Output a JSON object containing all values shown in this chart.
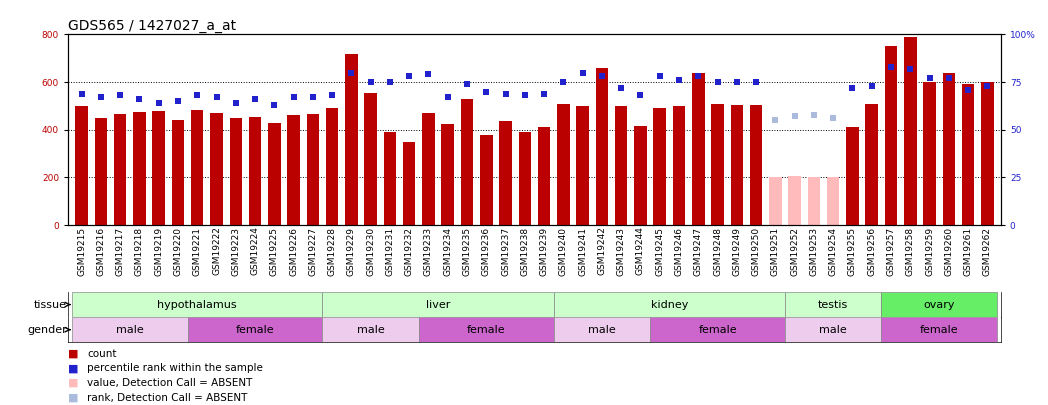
{
  "title": "GDS565 / 1427027_a_at",
  "samples": [
    "GSM19215",
    "GSM19216",
    "GSM19217",
    "GSM19218",
    "GSM19219",
    "GSM19220",
    "GSM19221",
    "GSM19222",
    "GSM19223",
    "GSM19224",
    "GSM19225",
    "GSM19226",
    "GSM19227",
    "GSM19228",
    "GSM19229",
    "GSM19230",
    "GSM19231",
    "GSM19232",
    "GSM19233",
    "GSM19234",
    "GSM19235",
    "GSM19236",
    "GSM19237",
    "GSM19238",
    "GSM19239",
    "GSM19240",
    "GSM19241",
    "GSM19242",
    "GSM19243",
    "GSM19244",
    "GSM19245",
    "GSM19246",
    "GSM19247",
    "GSM19248",
    "GSM19249",
    "GSM19250",
    "GSM19251",
    "GSM19252",
    "GSM19253",
    "GSM19254",
    "GSM19255",
    "GSM19256",
    "GSM19257",
    "GSM19258",
    "GSM19259",
    "GSM19260",
    "GSM19261",
    "GSM19262"
  ],
  "counts": [
    500,
    450,
    465,
    475,
    480,
    440,
    485,
    470,
    450,
    455,
    430,
    460,
    465,
    490,
    720,
    555,
    390,
    350,
    470,
    425,
    530,
    380,
    435,
    390,
    410,
    510,
    500,
    660,
    500,
    415,
    490,
    500,
    640,
    510,
    505,
    505,
    200,
    205,
    200,
    200,
    410,
    510,
    750,
    790,
    600,
    640,
    590,
    600
  ],
  "percentile_ranks": [
    69,
    67,
    68,
    66,
    64,
    65,
    68,
    67,
    64,
    66,
    63,
    67,
    67,
    68,
    80,
    75,
    75,
    78,
    79,
    67,
    74,
    70,
    69,
    68,
    69,
    75,
    80,
    78,
    72,
    68,
    78,
    76,
    78,
    75,
    75,
    75,
    55,
    57,
    58,
    56,
    72,
    73,
    83,
    82,
    77,
    77,
    71,
    73
  ],
  "absent_call": [
    false,
    false,
    false,
    false,
    false,
    false,
    false,
    false,
    false,
    false,
    false,
    false,
    false,
    false,
    false,
    false,
    false,
    false,
    false,
    false,
    false,
    false,
    false,
    false,
    false,
    false,
    false,
    false,
    false,
    false,
    false,
    false,
    false,
    false,
    false,
    false,
    true,
    true,
    true,
    true,
    false,
    false,
    false,
    false,
    false,
    false,
    false,
    false
  ],
  "bar_color_normal": "#bb0000",
  "bar_color_absent": "#ffbbbb",
  "dot_color_normal": "#2222cc",
  "dot_color_absent": "#aabbdd",
  "ylim_left": [
    0,
    800
  ],
  "ylim_right": [
    0,
    100
  ],
  "yticks_left": [
    0,
    200,
    400,
    600,
    800
  ],
  "yticks_right": [
    0,
    25,
    50,
    75,
    100
  ],
  "ytick_right_labels": [
    "0",
    "25",
    "50",
    "75",
    "100%"
  ],
  "tissues": [
    {
      "label": "hypothalamus",
      "start": 0,
      "end": 13,
      "color": "#ccffcc"
    },
    {
      "label": "liver",
      "start": 13,
      "end": 25,
      "color": "#ccffcc"
    },
    {
      "label": "kidney",
      "start": 25,
      "end": 37,
      "color": "#ccffcc"
    },
    {
      "label": "testis",
      "start": 37,
      "end": 42,
      "color": "#ccffcc"
    },
    {
      "label": "ovary",
      "start": 42,
      "end": 48,
      "color": "#66ee66"
    }
  ],
  "genders": [
    {
      "label": "male",
      "start": 0,
      "end": 6,
      "color": "#eeccee"
    },
    {
      "label": "female",
      "start": 6,
      "end": 13,
      "color": "#cc66cc"
    },
    {
      "label": "male",
      "start": 13,
      "end": 18,
      "color": "#eeccee"
    },
    {
      "label": "female",
      "start": 18,
      "end": 25,
      "color": "#cc66cc"
    },
    {
      "label": "male",
      "start": 25,
      "end": 30,
      "color": "#eeccee"
    },
    {
      "label": "female",
      "start": 30,
      "end": 37,
      "color": "#cc66cc"
    },
    {
      "label": "male",
      "start": 37,
      "end": 42,
      "color": "#eeccee"
    },
    {
      "label": "female",
      "start": 42,
      "end": 48,
      "color": "#cc66cc"
    }
  ],
  "legend_labels": [
    "count",
    "percentile rank within the sample",
    "value, Detection Call = ABSENT",
    "rank, Detection Call = ABSENT"
  ],
  "legend_colors": [
    "#bb0000",
    "#2222cc",
    "#ffbbbb",
    "#aabbdd"
  ],
  "background_color": "#ffffff",
  "title_fontsize": 10,
  "tick_fontsize": 6.5,
  "label_fontsize": 8,
  "row_label_fontsize": 8
}
